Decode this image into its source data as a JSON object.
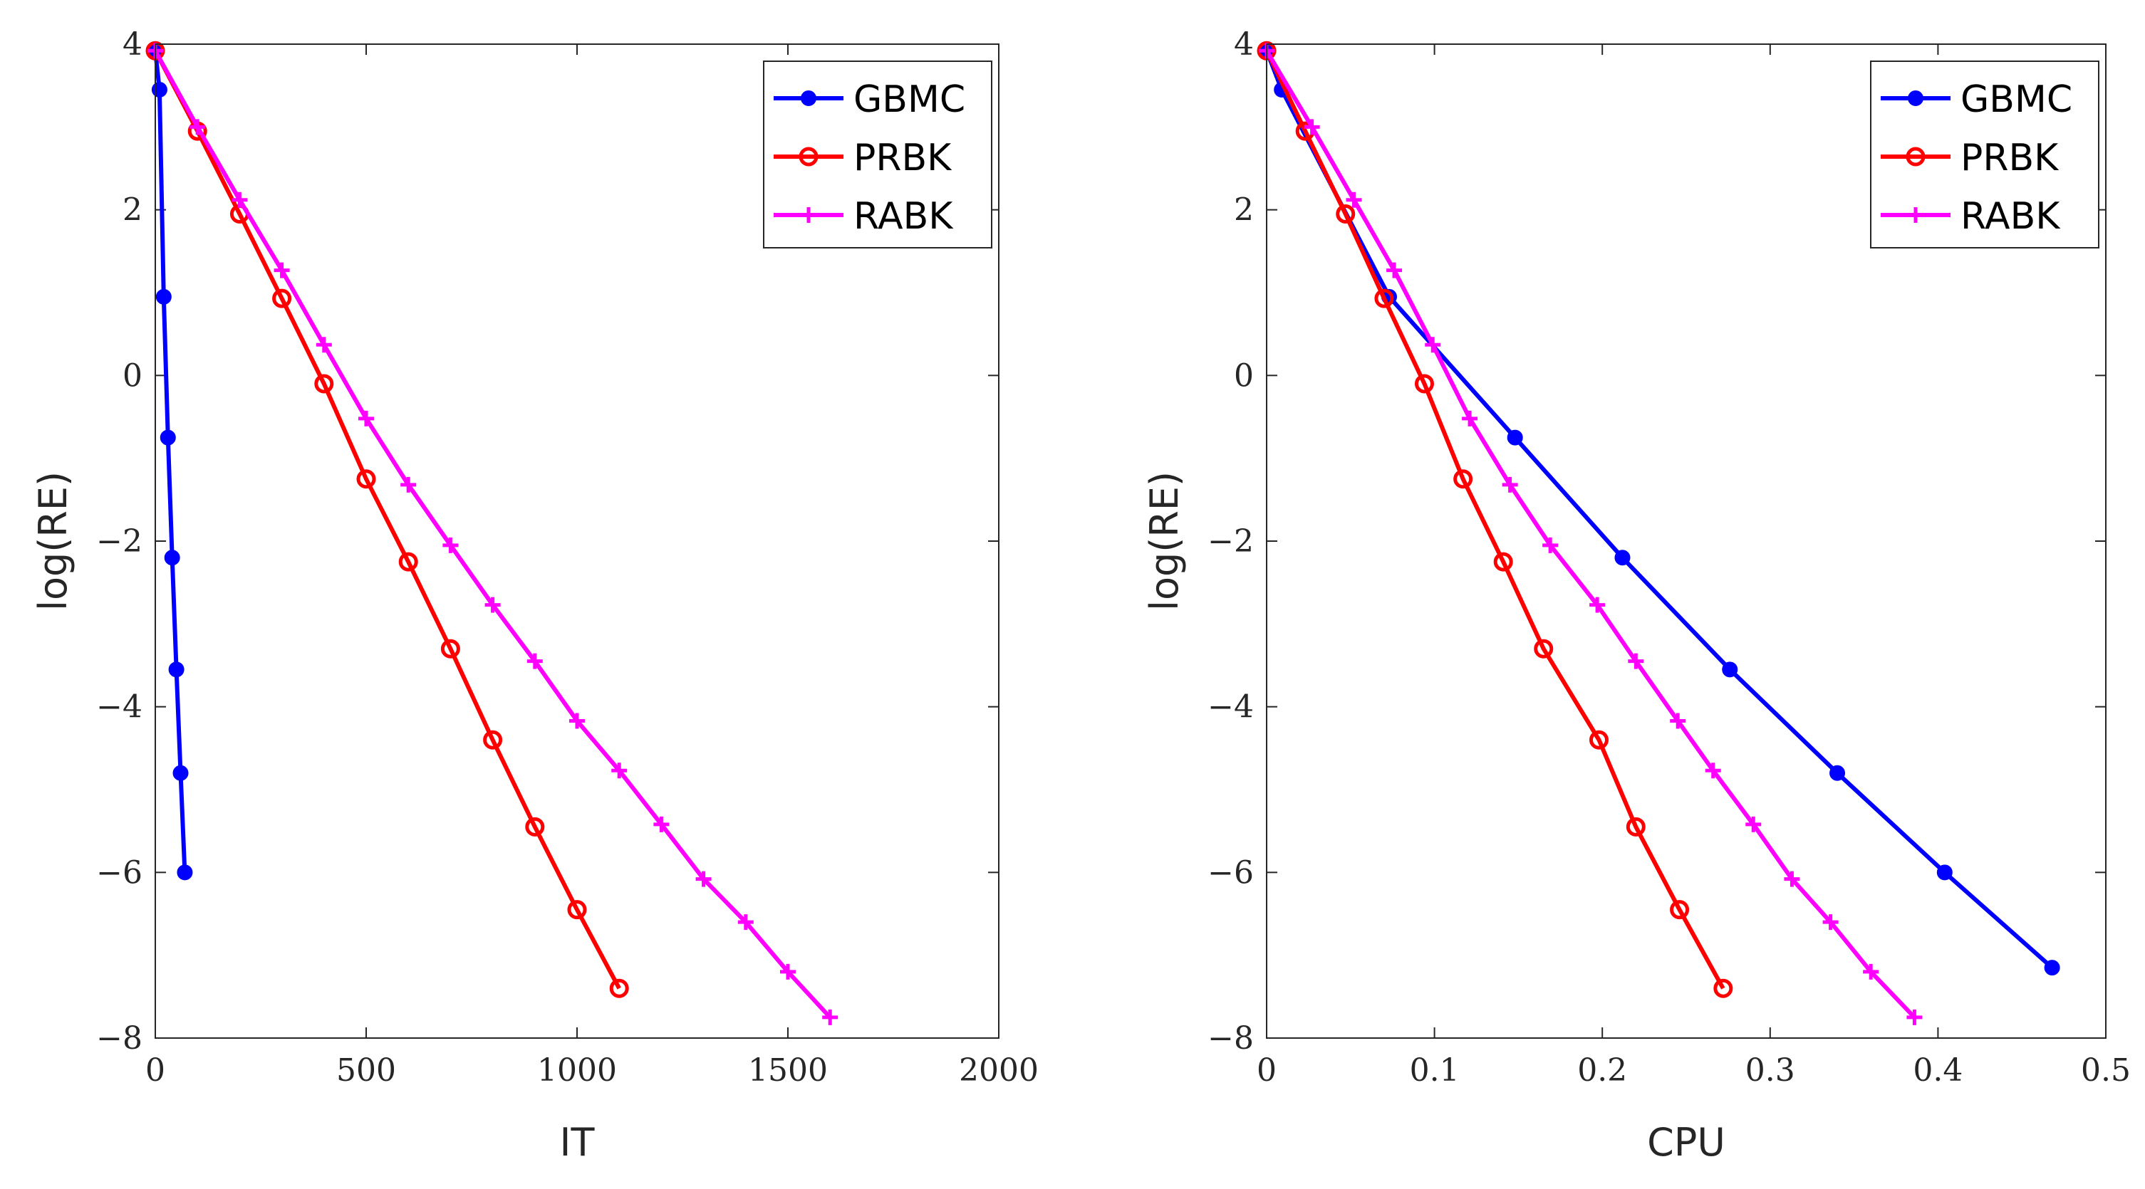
{
  "chart_data": [
    {
      "type": "line",
      "xlabel": "IT",
      "ylabel": "log(RE)",
      "xlim": [
        0,
        2000
      ],
      "ylim": [
        -8,
        4
      ],
      "xticks": [
        0,
        500,
        1000,
        1500,
        2000
      ],
      "xtick_labels": [
        "0",
        "500",
        "1000",
        "1500",
        "2000"
      ],
      "yticks": [
        4,
        2,
        0,
        -2,
        -4,
        -6,
        -8
      ],
      "ytick_labels": [
        "4",
        "2",
        "0",
        "−2",
        "−4",
        "−6",
        "−8"
      ],
      "legend": "top-right",
      "series": [
        {
          "name": "GBMC",
          "color": "#0000ff",
          "marker": "dot",
          "x": [
            0,
            10,
            20,
            30,
            40,
            50,
            60,
            70
          ],
          "y": [
            3.92,
            3.45,
            0.95,
            -0.75,
            -2.2,
            -3.55,
            -4.8,
            -6.0
          ]
        },
        {
          "name": "PRBK",
          "color": "#ff0000",
          "marker": "circle",
          "x": [
            0,
            100,
            200,
            300,
            400,
            500,
            600,
            700,
            800,
            900,
            1000,
            1100
          ],
          "y": [
            3.92,
            2.95,
            1.95,
            0.93,
            -0.1,
            -1.25,
            -2.25,
            -3.3,
            -4.4,
            -5.45,
            -6.45,
            -7.4
          ]
        },
        {
          "name": "RABK",
          "color": "#ff00ff",
          "marker": "plus",
          "x": [
            0,
            100,
            200,
            300,
            400,
            500,
            600,
            700,
            800,
            900,
            1000,
            1100,
            1200,
            1300,
            1400,
            1500,
            1600
          ],
          "y": [
            3.92,
            3.0,
            2.12,
            1.27,
            0.37,
            -0.52,
            -1.32,
            -2.05,
            -2.77,
            -3.45,
            -4.17,
            -4.77,
            -5.42,
            -6.08,
            -6.6,
            -7.2,
            -7.75
          ]
        }
      ]
    },
    {
      "type": "line",
      "xlabel": "CPU",
      "ylabel": "log(RE)",
      "xlim": [
        0,
        0.5
      ],
      "ylim": [
        -8,
        4
      ],
      "xticks": [
        0,
        0.1,
        0.2,
        0.3,
        0.4,
        0.5
      ],
      "xtick_labels": [
        "0",
        "0.1",
        "0.2",
        "0.3",
        "0.4",
        "0.5"
      ],
      "yticks": [
        4,
        2,
        0,
        -2,
        -4,
        -6,
        -8
      ],
      "ytick_labels": [
        "4",
        "2",
        "0",
        "−2",
        "−4",
        "−6",
        "−8"
      ],
      "legend": "top-right",
      "series": [
        {
          "name": "GBMC",
          "color": "#0000ff",
          "marker": "dot",
          "x": [
            0,
            0.009,
            0.073,
            0.148,
            0.212,
            0.276,
            0.34,
            0.404,
            0.468
          ],
          "y": [
            3.92,
            3.45,
            0.95,
            -0.75,
            -2.2,
            -3.55,
            -4.8,
            -6.0,
            -7.15
          ]
        },
        {
          "name": "PRBK",
          "color": "#ff0000",
          "marker": "circle",
          "x": [
            0,
            0.023,
            0.047,
            0.07,
            0.094,
            0.117,
            0.141,
            0.165,
            0.198,
            0.22,
            0.246,
            0.272
          ],
          "y": [
            3.92,
            2.95,
            1.95,
            0.93,
            -0.1,
            -1.25,
            -2.25,
            -3.3,
            -4.4,
            -5.45,
            -6.45,
            -7.4
          ]
        },
        {
          "name": "RABK",
          "color": "#ff00ff",
          "marker": "plus",
          "x": [
            0,
            0.027,
            0.052,
            0.076,
            0.099,
            0.121,
            0.145,
            0.169,
            0.197,
            0.22,
            0.245,
            0.266,
            0.29,
            0.313,
            0.336,
            0.36,
            0.386
          ],
          "y": [
            3.92,
            3.0,
            2.12,
            1.27,
            0.37,
            -0.52,
            -1.32,
            -2.05,
            -2.77,
            -3.45,
            -4.17,
            -4.77,
            -5.42,
            -6.08,
            -6.6,
            -7.2,
            -7.75
          ]
        }
      ]
    }
  ]
}
